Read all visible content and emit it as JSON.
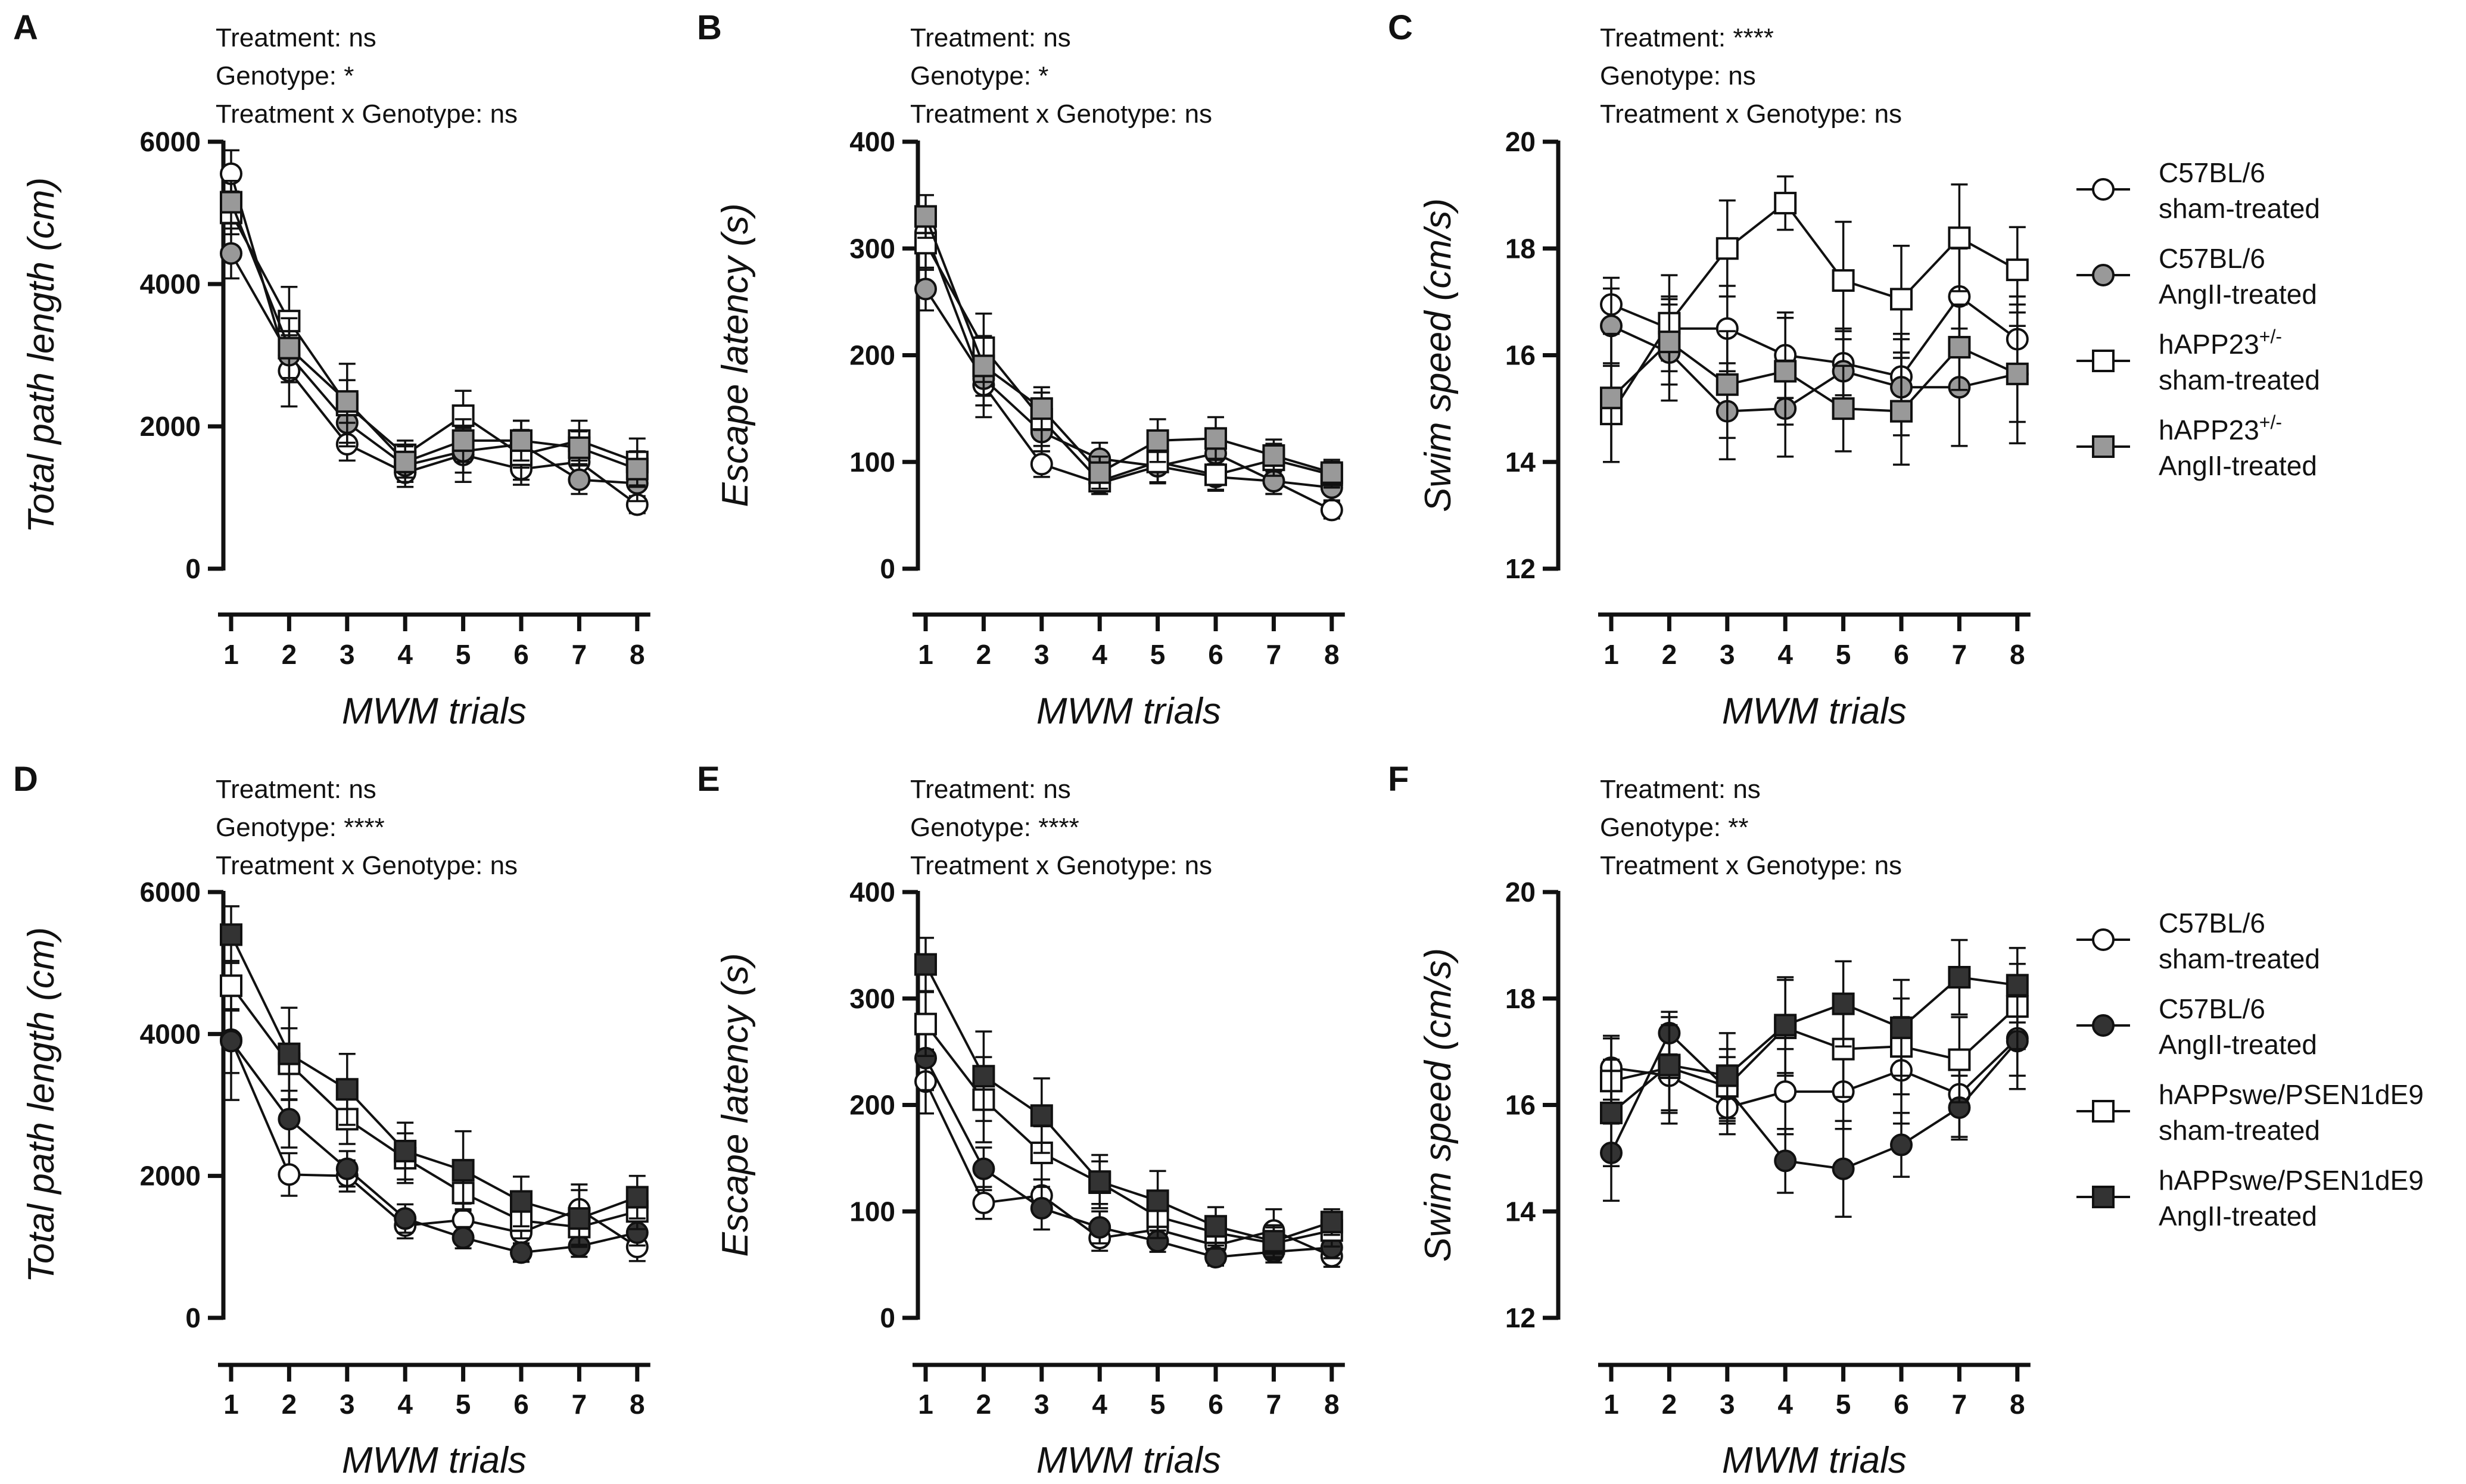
{
  "legends": [
    {
      "entries": [
        {
          "line1": "C57BL/6",
          "line2": "sham-treated",
          "marker": "circle",
          "fill": "#ffffff"
        },
        {
          "line1": "C57BL/6",
          "line2": "AngII-treated",
          "marker": "circle",
          "fill": "#999999"
        },
        {
          "line1": "hAPP23",
          "sup": "+/-",
          "line2": "sham-treated",
          "marker": "square",
          "fill": "#ffffff"
        },
        {
          "line1": "hAPP23",
          "sup": "+/-",
          "line2": "AngII-treated",
          "marker": "square",
          "fill": "#999999"
        }
      ]
    },
    {
      "entries": [
        {
          "line1": "C57BL/6",
          "line2": "sham-treated",
          "marker": "circle",
          "fill": "#ffffff"
        },
        {
          "line1": "C57BL/6",
          "line2": "AngII-treated",
          "marker": "circle",
          "fill": "#333333"
        },
        {
          "line1": "hAPPswe/PSEN1dE9",
          "line2": "sham-treated",
          "marker": "square",
          "fill": "#ffffff"
        },
        {
          "line1": "hAPPswe/PSEN1dE9",
          "line2": "AngII-treated",
          "marker": "square",
          "fill": "#333333"
        }
      ]
    }
  ],
  "chart_data": [
    {
      "panel": "A",
      "type": "line",
      "stats": [
        "Treatment: ns",
        "Genotype: *",
        "Treatment x Genotype: ns"
      ],
      "xlabel": "MWM trials",
      "ylabel": "Total path length (cm)",
      "x": [
        1,
        2,
        3,
        4,
        5,
        6,
        7,
        8
      ],
      "ylim": [
        0,
        6000
      ],
      "yticks": [
        0,
        2000,
        4000,
        6000
      ],
      "series": [
        {
          "name": "C57BL/6 sham-treated",
          "marker": "circle",
          "fill": "#ffffff",
          "values": [
            5550,
            2780,
            1750,
            1350,
            1600,
            1400,
            1500,
            900
          ],
          "err": [
            330,
            500,
            230,
            200,
            380,
            220,
            200,
            120
          ]
        },
        {
          "name": "C57BL/6 AngII-treated",
          "marker": "circle",
          "fill": "#999999",
          "values": [
            4430,
            3000,
            2050,
            1450,
            1650,
            1750,
            1250,
            1200
          ],
          "err": [
            350,
            380,
            280,
            230,
            300,
            330,
            200,
            250
          ]
        },
        {
          "name": "hAPP23+/- sham-treated",
          "marker": "square",
          "fill": "#ffffff",
          "values": [
            5000,
            3480,
            2300,
            1600,
            2150,
            1600,
            1800,
            1500
          ],
          "err": [
            300,
            480,
            580,
            200,
            350,
            350,
            280,
            330
          ]
        },
        {
          "name": "hAPP23+/- AngII-treated",
          "marker": "square",
          "fill": "#999999",
          "values": [
            5150,
            3100,
            2350,
            1500,
            1800,
            1800,
            1700,
            1400
          ],
          "err": [
            300,
            420,
            300,
            220,
            300,
            280,
            230,
            250
          ]
        }
      ]
    },
    {
      "panel": "B",
      "type": "line",
      "stats": [
        "Treatment: ns",
        "Genotype: *",
        "Treatment x Genotype: ns"
      ],
      "xlabel": "MWM trials",
      "ylabel": "Escape latency (s)",
      "x": [
        1,
        2,
        3,
        4,
        5,
        6,
        7,
        8
      ],
      "ylim": [
        0,
        400
      ],
      "yticks": [
        0,
        100,
        200,
        300,
        400
      ],
      "series": [
        {
          "name": "C57BL/6 sham-treated",
          "marker": "circle",
          "fill": "#ffffff",
          "values": [
            315,
            172,
            98,
            80,
            96,
            86,
            82,
            55
          ],
          "err": [
            18,
            30,
            12,
            10,
            15,
            12,
            12,
            8
          ]
        },
        {
          "name": "C57BL/6 AngII-treated",
          "marker": "circle",
          "fill": "#999999",
          "values": [
            262,
            178,
            128,
            103,
            96,
            108,
            82,
            76
          ],
          "err": [
            20,
            25,
            18,
            15,
            15,
            18,
            12,
            12
          ]
        },
        {
          "name": "hAPP23+/- sham-treated",
          "marker": "square",
          "fill": "#ffffff",
          "values": [
            305,
            207,
            140,
            82,
            100,
            88,
            102,
            88
          ],
          "err": [
            25,
            32,
            25,
            12,
            20,
            15,
            15,
            12
          ]
        },
        {
          "name": "hAPP23+/- AngII-treated",
          "marker": "square",
          "fill": "#999999",
          "values": [
            330,
            190,
            150,
            90,
            120,
            122,
            106,
            90
          ],
          "err": [
            20,
            28,
            20,
            15,
            20,
            20,
            15,
            12
          ]
        }
      ]
    },
    {
      "panel": "C",
      "type": "line",
      "stats": [
        "Treatment: ****",
        "Genotype: ns",
        "Treatment x Genotype: ns"
      ],
      "xlabel": "MWM trials",
      "ylabel": "Swim speed (cm/s)",
      "x": [
        1,
        2,
        3,
        4,
        5,
        6,
        7,
        8
      ],
      "ylim": [
        12,
        20
      ],
      "yticks": [
        12,
        14,
        16,
        18,
        20
      ],
      "series": [
        {
          "name": "C57BL/6 sham-treated",
          "marker": "circle",
          "fill": "#ffffff",
          "values": [
            16.95,
            16.5,
            16.5,
            16.0,
            15.85,
            15.6,
            17.1,
            16.3
          ],
          "err": [
            0.5,
            0.6,
            0.8,
            0.8,
            0.6,
            0.8,
            0.9,
            0.8
          ]
        },
        {
          "name": "C57BL/6 AngII-treated",
          "marker": "circle",
          "fill": "#999999",
          "values": [
            16.55,
            16.05,
            14.95,
            15.0,
            15.7,
            15.4,
            15.4,
            15.65
          ],
          "err": [
            0.7,
            0.9,
            0.9,
            0.9,
            0.8,
            0.9,
            1.1,
            1.3
          ]
        },
        {
          "name": "hAPP23+/- sham-treated",
          "marker": "square",
          "fill": "#ffffff",
          "values": [
            14.9,
            16.6,
            18.0,
            18.85,
            17.4,
            17.05,
            18.2,
            17.6
          ],
          "err": [
            0.9,
            0.9,
            0.9,
            0.5,
            1.1,
            1.0,
            1.0,
            0.8
          ]
        },
        {
          "name": "hAPP23+/- AngII-treated",
          "marker": "square",
          "fill": "#999999",
          "values": [
            15.2,
            16.25,
            15.45,
            15.7,
            15.0,
            14.95,
            16.15,
            15.65
          ],
          "err": [
            1.2,
            0.8,
            1.0,
            1.0,
            0.8,
            1.0,
            0.8,
            0.9
          ]
        }
      ]
    },
    {
      "panel": "D",
      "type": "line",
      "stats": [
        "Treatment: ns",
        "Genotype: ****",
        "Treatment x Genotype: ns"
      ],
      "xlabel": "MWM trials",
      "ylabel": "Total path length (cm)",
      "x": [
        1,
        2,
        3,
        4,
        5,
        6,
        7,
        8
      ],
      "ylim": [
        0,
        6000
      ],
      "yticks": [
        0,
        2000,
        4000,
        6000
      ],
      "series": [
        {
          "name": "C57BL/6 sham-treated",
          "marker": "circle",
          "fill": "#ffffff",
          "values": [
            3920,
            2020,
            2000,
            1300,
            1380,
            1200,
            1530,
            1000
          ],
          "err": [
            850,
            300,
            220,
            180,
            230,
            180,
            350,
            200
          ]
        },
        {
          "name": "C57BL/6 AngII-treated",
          "marker": "circle",
          "fill": "#333333",
          "values": [
            3900,
            2800,
            2100,
            1400,
            1130,
            920,
            1010,
            1200
          ],
          "err": [
            450,
            400,
            250,
            200,
            150,
            130,
            150,
            180
          ]
        },
        {
          "name": "hAPPswe/PSEN1dE9 sham-treated",
          "marker": "square",
          "fill": "#ffffff",
          "values": [
            4680,
            3580,
            2800,
            2250,
            1760,
            1370,
            1280,
            1500
          ],
          "err": [
            350,
            500,
            350,
            350,
            250,
            250,
            250,
            250
          ]
        },
        {
          "name": "hAPPswe/PSEN1dE9 AngII-treated",
          "marker": "square",
          "fill": "#333333",
          "values": [
            5400,
            3720,
            3220,
            2350,
            2080,
            1640,
            1400,
            1700
          ],
          "err": [
            400,
            650,
            500,
            400,
            550,
            350,
            400,
            300
          ]
        }
      ]
    },
    {
      "panel": "E",
      "type": "line",
      "stats": [
        "Treatment: ns",
        "Genotype: ****",
        "Treatment x Genotype: ns"
      ],
      "xlabel": "MWM trials",
      "ylabel": "Escape latency (s)",
      "x": [
        1,
        2,
        3,
        4,
        5,
        6,
        7,
        8
      ],
      "ylim": [
        0,
        400
      ],
      "yticks": [
        0,
        100,
        200,
        300,
        400
      ],
      "series": [
        {
          "name": "C57BL/6 sham-treated",
          "marker": "circle",
          "fill": "#ffffff",
          "values": [
            222,
            108,
            115,
            75,
            83,
            68,
            82,
            58
          ],
          "err": [
            30,
            15,
            15,
            12,
            15,
            12,
            20,
            10
          ]
        },
        {
          "name": "C57BL/6 AngII-treated",
          "marker": "circle",
          "fill": "#333333",
          "values": [
            244,
            140,
            103,
            85,
            72,
            57,
            62,
            66
          ],
          "err": [
            30,
            20,
            20,
            15,
            10,
            8,
            10,
            10
          ]
        },
        {
          "name": "hAPPswe/PSEN1dE9 sham-treated",
          "marker": "square",
          "fill": "#ffffff",
          "values": [
            276,
            205,
            155,
            127,
            95,
            80,
            70,
            82
          ],
          "err": [
            30,
            40,
            25,
            20,
            20,
            15,
            15,
            15
          ]
        },
        {
          "name": "hAPPswe/PSEN1dE9 AngII-treated",
          "marker": "square",
          "fill": "#333333",
          "values": [
            332,
            227,
            190,
            128,
            110,
            86,
            72,
            90
          ],
          "err": [
            25,
            42,
            35,
            25,
            28,
            18,
            15,
            12
          ]
        }
      ]
    },
    {
      "panel": "F",
      "type": "line",
      "stats": [
        "Treatment: ns",
        "Genotype: **",
        "Treatment x Genotype: ns"
      ],
      "xlabel": "MWM trials",
      "ylabel": "Swim speed (cm/s)",
      "x": [
        1,
        2,
        3,
        4,
        5,
        6,
        7,
        8
      ],
      "ylim": [
        12,
        20
      ],
      "yticks": [
        12,
        14,
        16,
        18,
        20
      ],
      "series": [
        {
          "name": "C57BL/6 sham-treated",
          "marker": "circle",
          "fill": "#ffffff",
          "values": [
            16.7,
            16.55,
            15.95,
            16.25,
            16.25,
            16.65,
            16.2,
            17.25
          ],
          "err": [
            0.6,
            0.9,
            0.5,
            0.8,
            0.7,
            1.0,
            0.8,
            0.7
          ]
        },
        {
          "name": "C57BL/6 AngII-treated",
          "marker": "circle",
          "fill": "#333333",
          "values": [
            15.1,
            17.35,
            16.3,
            14.95,
            14.8,
            15.25,
            15.95,
            17.2
          ],
          "err": [
            0.9,
            0.4,
            0.6,
            0.6,
            0.9,
            0.6,
            0.6,
            0.9
          ]
        },
        {
          "name": "hAPPswe/PSEN1dE9 sham-treated",
          "marker": "square",
          "fill": "#ffffff",
          "values": [
            16.45,
            16.7,
            16.35,
            17.45,
            17.05,
            17.1,
            16.85,
            17.85
          ],
          "err": [
            0.8,
            0.8,
            0.7,
            0.9,
            0.9,
            0.9,
            0.8,
            0.8
          ]
        },
        {
          "name": "hAPPswe/PSEN1dE9 AngII-treated",
          "marker": "square",
          "fill": "#333333",
          "values": [
            15.85,
            16.75,
            16.55,
            17.5,
            17.9,
            17.45,
            18.4,
            18.25
          ],
          "err": [
            1.0,
            0.9,
            0.8,
            0.9,
            0.8,
            0.9,
            0.7,
            0.7
          ]
        }
      ]
    }
  ]
}
